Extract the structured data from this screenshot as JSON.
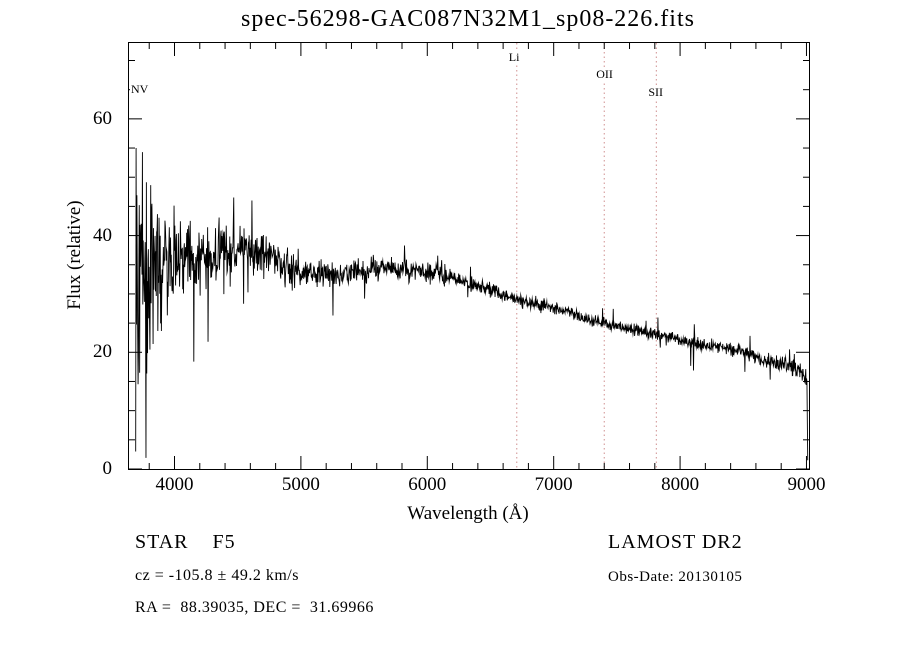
{
  "chart_data": {
    "type": "line",
    "title": "spec-56298-GAC087N32M1_sp08-226.fits",
    "xlabel": "Wavelength (Å)",
    "ylabel": "Flux (relative)",
    "xlim": [
      3640,
      9020
    ],
    "ylim": [
      0,
      73
    ],
    "x_ticks": [
      4000,
      5000,
      6000,
      7000,
      8000,
      9000
    ],
    "x_minor_step": 200,
    "y_ticks": [
      0,
      20,
      40,
      60
    ],
    "y_minor_step": 5,
    "grid": false,
    "legend": "none",
    "series_color": "#000000",
    "marker_line_color": "#cf8f8f",
    "continuum": {
      "x": [
        3693,
        3750,
        3900,
        4100,
        4300,
        4500,
        4700,
        4900,
        5100,
        5300,
        5500,
        5700,
        5900,
        6100,
        6300,
        6500,
        6700,
        6900,
        7100,
        7300,
        7500,
        7700,
        7900,
        8100,
        8300,
        8500,
        8700,
        8900,
        9000,
        9010
      ],
      "y": [
        30,
        33,
        34,
        36,
        36.5,
        38,
        37,
        34.5,
        33.5,
        33.5,
        34,
        34.5,
        34,
        33.5,
        32,
        30.5,
        29,
        28,
        27,
        25.5,
        24.5,
        23.5,
        22.5,
        21.5,
        21,
        20,
        18.5,
        17.5,
        15.5,
        14
      ]
    },
    "noise_sigma": {
      "x": [
        3693,
        3800,
        3950,
        4150,
        4400,
        4700,
        5000,
        5400,
        5800,
        6200,
        6600,
        7000,
        7400,
        7800,
        8200,
        8600,
        9000
      ],
      "sigma": [
        10,
        7,
        4.5,
        3.2,
        2.4,
        1.8,
        1.3,
        1.0,
        0.8,
        0.7,
        0.6,
        0.55,
        0.5,
        0.55,
        0.6,
        0.65,
        0.8
      ]
    },
    "spectral_lines": [
      {
        "label": "NV",
        "wavelength": 3695,
        "has_line": false,
        "label_offset": 40
      },
      {
        "label": "Li",
        "wavelength": 6708,
        "has_line": true,
        "label_offset": 8
      },
      {
        "label": "OII",
        "wavelength": 7400,
        "has_line": true,
        "label_offset": 25
      },
      {
        "label": "SII",
        "wavelength": 7812,
        "has_line": true,
        "label_offset": 43
      }
    ]
  },
  "annotations": {
    "class_label": "STAR    F5",
    "survey": "LAMOST DR2",
    "cz": "cz = -105.8 ± 49.2 km/s",
    "obs_date": "Obs-Date: 20130105",
    "coords": "RA =  88.39035, DEC =  31.69966"
  }
}
